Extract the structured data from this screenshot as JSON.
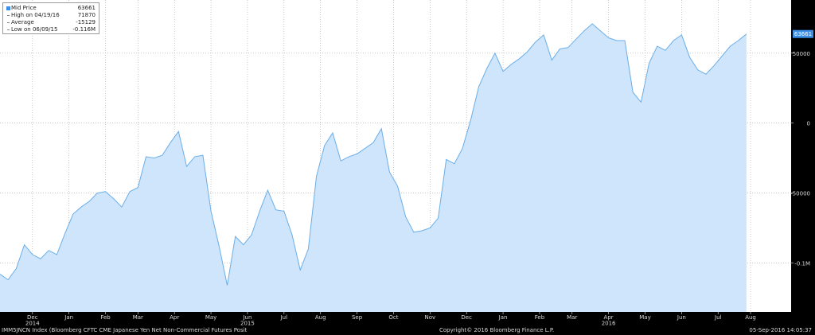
{
  "legend": {
    "rows": [
      {
        "label": "Mid Price",
        "value": "63661"
      },
      {
        "label": "High on 04/19/16",
        "value": "71870"
      },
      {
        "label": "Average",
        "value": "-15129"
      },
      {
        "label": "Low on 06/09/15",
        "value": "-0.116M"
      }
    ]
  },
  "last_price_tag": "63661",
  "footer": {
    "left": "IMM5JNCN Index (Bloomberg CFTC CME Japanese Yen Net Non-Commercial Futures Posit",
    "center": "Copyright© 2016 Bloomberg Finance L.P.",
    "right": "05-Sep-2016 14:05:37"
  },
  "colors": {
    "fill": "#cfe5fb",
    "line": "#6aaee8",
    "background": "#ffffff",
    "axis_bg": "#000000",
    "tag": "#3d8ee6"
  },
  "chart_data": {
    "type": "area",
    "ylim": [
      -0.135,
      0.088
    ],
    "y_unit_note": "",
    "y_ticks": [
      {
        "value": 0.05,
        "label": "50000"
      },
      {
        "value": 0,
        "label": "0"
      },
      {
        "value": -0.05,
        "label": "-50000"
      },
      {
        "value": -0.1,
        "label": "-0.1M"
      }
    ],
    "x_ticks": [
      {
        "x": 4,
        "label": "Dec",
        "year": "2014"
      },
      {
        "x": 8.5,
        "label": "Jan",
        "year": ""
      },
      {
        "x": 13,
        "label": "Feb",
        "year": ""
      },
      {
        "x": 17,
        "label": "Mar",
        "year": ""
      },
      {
        "x": 21.5,
        "label": "Apr",
        "year": ""
      },
      {
        "x": 26,
        "label": "May",
        "year": ""
      },
      {
        "x": 30.5,
        "label": "Jun",
        "year": "2015"
      },
      {
        "x": 35,
        "label": "Jul",
        "year": ""
      },
      {
        "x": 39.5,
        "label": "Aug",
        "year": ""
      },
      {
        "x": 44,
        "label": "Sep",
        "year": ""
      },
      {
        "x": 48.5,
        "label": "Oct",
        "year": ""
      },
      {
        "x": 53,
        "label": "Nov",
        "year": ""
      },
      {
        "x": 57.5,
        "label": "Dec",
        "year": ""
      },
      {
        "x": 62,
        "label": "Jan",
        "year": ""
      },
      {
        "x": 66.5,
        "label": "Feb",
        "year": ""
      },
      {
        "x": 70.5,
        "label": "Mar",
        "year": ""
      },
      {
        "x": 75,
        "label": "Apr",
        "year": "2016"
      },
      {
        "x": 79.5,
        "label": "May",
        "year": ""
      },
      {
        "x": 84,
        "label": "Jun",
        "year": ""
      },
      {
        "x": 88.5,
        "label": "Jul",
        "year": ""
      },
      {
        "x": 92.5,
        "label": "Aug",
        "year": ""
      }
    ],
    "xlim": [
      0,
      97.5
    ],
    "series": [
      {
        "values": [
          -0.108,
          -0.112,
          -0.104,
          -0.087,
          -0.094,
          -0.097,
          -0.091,
          -0.094,
          -0.079,
          -0.065,
          -0.06,
          -0.056,
          -0.05,
          -0.049,
          -0.054,
          -0.06,
          -0.049,
          -0.046,
          -0.024,
          -0.025,
          -0.023,
          -0.014,
          -0.006,
          -0.031,
          -0.024,
          -0.023,
          -0.063,
          -0.088,
          -0.116,
          -0.081,
          -0.087,
          -0.08,
          -0.063,
          -0.048,
          -0.062,
          -0.063,
          -0.08,
          -0.105,
          -0.09,
          -0.038,
          -0.016,
          -0.007,
          -0.027,
          -0.024,
          -0.022,
          -0.018,
          -0.014,
          -0.004,
          -0.035,
          -0.045,
          -0.067,
          -0.078,
          -0.077,
          -0.075,
          -0.068,
          -0.026,
          -0.029,
          -0.018,
          0.002,
          0.026,
          0.039,
          0.05,
          0.037,
          0.042,
          0.046,
          0.051,
          0.058,
          0.063,
          0.045,
          0.053,
          0.054,
          0.06,
          0.066,
          0.071,
          0.066,
          0.061,
          0.059,
          0.059,
          0.022,
          0.015,
          0.043,
          0.055,
          0.052,
          0.059,
          0.063,
          0.047,
          0.038,
          0.035,
          0.041,
          0.048,
          0.055,
          0.059,
          0.0637
        ]
      }
    ]
  }
}
